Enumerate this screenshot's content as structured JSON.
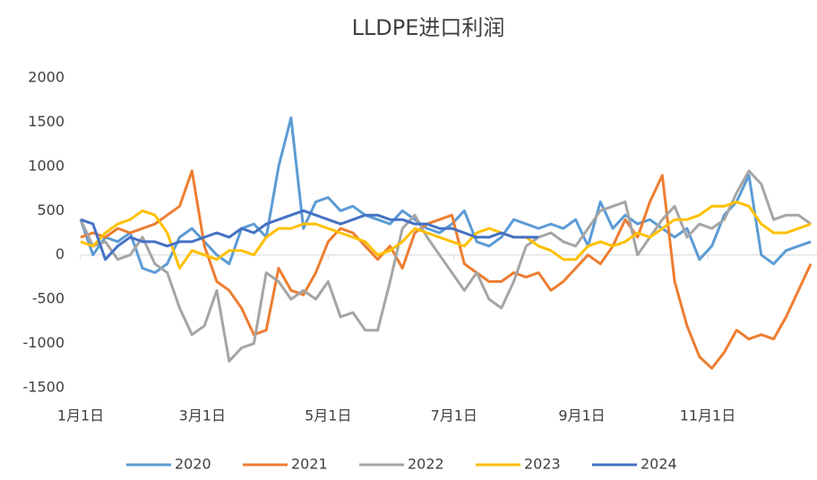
{
  "chart_data": {
    "type": "line",
    "title": "LLDPE进口利润",
    "x": [
      0,
      6,
      12,
      18,
      24,
      30,
      36,
      42,
      48,
      54,
      60,
      66,
      72,
      78,
      84,
      90,
      96,
      102,
      108,
      114,
      120,
      126,
      132,
      138,
      144,
      150,
      156,
      162,
      168,
      174,
      180,
      186,
      192,
      198,
      204,
      210,
      216,
      222,
      228,
      234,
      240,
      246,
      252,
      258,
      264,
      270,
      276,
      282,
      288,
      294,
      300,
      306,
      312,
      318,
      324,
      330,
      336,
      342,
      348,
      354
    ],
    "xlim": [
      0,
      357
    ],
    "xticks": [
      {
        "value": 0,
        "label": "1月1日"
      },
      {
        "value": 59,
        "label": "3月1日"
      },
      {
        "value": 120,
        "label": "5月1日"
      },
      {
        "value": 181,
        "label": "7月1日"
      },
      {
        "value": 243,
        "label": "9月1日"
      },
      {
        "value": 304,
        "label": "11月1日"
      }
    ],
    "ylim": [
      -1500,
      2000
    ],
    "yticks": [
      -1500,
      -1000,
      -500,
      0,
      500,
      1000,
      1500,
      2000
    ],
    "legend": "bottom",
    "series": [
      {
        "name": "2020",
        "color": "#5b9bd5",
        "values": [
          400,
          0,
          200,
          150,
          250,
          -150,
          -200,
          -100,
          200,
          300,
          150,
          0,
          -100,
          300,
          350,
          200,
          1000,
          1550,
          300,
          600,
          650,
          500,
          550,
          450,
          400,
          350,
          500,
          400,
          300,
          250,
          350,
          500,
          150,
          100,
          200,
          400,
          350,
          300,
          350,
          300,
          400,
          100,
          600,
          300,
          450,
          350,
          400,
          300,
          200,
          300,
          -50,
          100,
          450,
          600,
          900,
          0,
          -100,
          50,
          100,
          150
        ]
      },
      {
        "name": "2021",
        "color": "#ed7d31",
        "values": [
          200,
          250,
          200,
          300,
          250,
          300,
          350,
          450,
          550,
          950,
          100,
          -300,
          -400,
          -600,
          -900,
          -850,
          -150,
          -400,
          -450,
          -200,
          150,
          300,
          250,
          100,
          -50,
          100,
          -150,
          250,
          350,
          400,
          450,
          -100,
          -200,
          -300,
          -300,
          -200,
          -250,
          -200,
          -400,
          -300,
          -150,
          0,
          -100,
          100,
          400,
          200,
          600,
          900,
          -300,
          -800,
          -1150,
          -1280,
          -1100,
          -850,
          -950,
          -900,
          -950,
          -700,
          -400,
          -100
        ]
      },
      {
        "name": "2022",
        "color": "#a5a5a5",
        "values": [
          400,
          100,
          150,
          -50,
          0,
          200,
          -100,
          -200,
          -600,
          -900,
          -800,
          -400,
          -1200,
          -1050,
          -1000,
          -200,
          -300,
          -500,
          -400,
          -500,
          -300,
          -700,
          -650,
          -850,
          -850,
          -300,
          300,
          450,
          200,
          0,
          -200,
          -400,
          -200,
          -500,
          -600,
          -300,
          100,
          200,
          250,
          150,
          100,
          300,
          500,
          550,
          600,
          0,
          200,
          400,
          550,
          200,
          350,
          300,
          400,
          700,
          950,
          800,
          400,
          450,
          450,
          350
        ]
      },
      {
        "name": "2023",
        "color": "#ffc000",
        "values": [
          150,
          100,
          250,
          350,
          400,
          500,
          450,
          250,
          -150,
          50,
          0,
          -50,
          50,
          50,
          0,
          200,
          300,
          300,
          350,
          350,
          300,
          250,
          200,
          150,
          0,
          50,
          150,
          300,
          250,
          200,
          150,
          100,
          250,
          300,
          250,
          200,
          200,
          100,
          50,
          -50,
          -50,
          100,
          150,
          100,
          150,
          250,
          200,
          300,
          400,
          400,
          450,
          550,
          550,
          600,
          550,
          350,
          250,
          250,
          300,
          350
        ]
      },
      {
        "name": "2024",
        "color": "#4472c4",
        "values": [
          400,
          350,
          -50,
          100,
          200,
          150,
          150,
          100,
          150,
          150,
          200,
          250,
          200,
          300,
          250,
          350,
          400,
          450,
          500,
          450,
          400,
          350,
          400,
          450,
          450,
          400,
          400,
          350,
          350,
          300,
          300,
          250,
          200,
          200,
          250,
          200,
          200,
          200,
          null,
          null,
          null,
          null,
          null,
          null,
          null,
          null,
          null,
          null,
          null,
          null,
          null,
          null,
          null,
          null,
          null,
          null,
          null,
          null,
          null,
          null
        ]
      }
    ]
  }
}
